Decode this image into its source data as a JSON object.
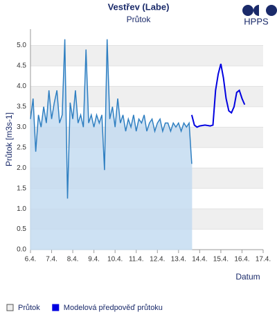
{
  "logo": "HPPS",
  "chart_data": {
    "type": "line",
    "title": "Vestřev (Labe)",
    "subtitle": "Průtok",
    "y_label": "Průtok [m3s-1]",
    "x_label": "Datum",
    "xlim": [
      6,
      17
    ],
    "ylim": [
      0,
      5.4
    ],
    "xticks": [
      {
        "value": 6,
        "label": "6.4."
      },
      {
        "value": 7,
        "label": "7.4."
      },
      {
        "value": 8,
        "label": "8.4."
      },
      {
        "value": 9,
        "label": "9.4."
      },
      {
        "value": 10,
        "label": "10.4."
      },
      {
        "value": 11,
        "label": "11.4."
      },
      {
        "value": 12,
        "label": "12.4."
      },
      {
        "value": 13,
        "label": "13.4."
      },
      {
        "value": 14,
        "label": "14.4."
      },
      {
        "value": 15,
        "label": "15.4."
      },
      {
        "value": 16,
        "label": "16.4."
      },
      {
        "value": 17,
        "label": "17.4."
      }
    ],
    "yticks": [
      {
        "value": 0,
        "label": "0.0"
      },
      {
        "value": 0.5,
        "label": "0.5"
      },
      {
        "value": 1,
        "label": "1.0"
      },
      {
        "value": 1.5,
        "label": "1.5"
      },
      {
        "value": 2,
        "label": "2.0"
      },
      {
        "value": 2.5,
        "label": "2.5"
      },
      {
        "value": 3,
        "label": "3.0"
      },
      {
        "value": 3.5,
        "label": "3.5"
      },
      {
        "value": 4,
        "label": "4.0"
      },
      {
        "value": 4.5,
        "label": "4.5"
      },
      {
        "value": 5,
        "label": "5.0"
      }
    ],
    "grid": true,
    "series": [
      {
        "name": "Průtok",
        "color": "#2f7fc1",
        "fill": "#c5dcf1",
        "area": true,
        "x": [
          6.0,
          6.125,
          6.25,
          6.375,
          6.5,
          6.625,
          6.75,
          6.875,
          7.0,
          7.125,
          7.25,
          7.375,
          7.5,
          7.625,
          7.75,
          7.875,
          8.0,
          8.125,
          8.25,
          8.375,
          8.5,
          8.625,
          8.75,
          8.875,
          9.0,
          9.125,
          9.25,
          9.375,
          9.5,
          9.625,
          9.75,
          9.875,
          10.0,
          10.125,
          10.25,
          10.375,
          10.5,
          10.625,
          10.75,
          10.875,
          11.0,
          11.125,
          11.25,
          11.375,
          11.5,
          11.625,
          11.75,
          11.875,
          12.0,
          12.125,
          12.25,
          12.375,
          12.5,
          12.625,
          12.75,
          12.875,
          13.0,
          13.125,
          13.25,
          13.375,
          13.5,
          13.625
        ],
        "values": [
          3.2,
          3.7,
          2.4,
          3.3,
          3.0,
          3.5,
          3.1,
          3.9,
          3.2,
          3.6,
          3.9,
          3.1,
          3.3,
          5.15,
          1.25,
          3.6,
          3.2,
          3.9,
          3.1,
          3.3,
          3.0,
          4.9,
          3.1,
          3.3,
          3.0,
          3.3,
          3.1,
          3.3,
          1.95,
          5.15,
          3.2,
          3.5,
          3.0,
          3.7,
          3.1,
          3.3,
          2.9,
          3.2,
          3.0,
          3.3,
          2.9,
          3.2,
          3.1,
          3.3,
          2.9,
          3.1,
          3.2,
          2.9,
          3.1,
          3.2,
          2.9,
          3.1,
          3.1,
          2.9,
          3.1,
          3.0,
          3.1,
          2.9,
          3.1,
          3.0,
          3.1,
          2.1
        ]
      },
      {
        "name": "Modelová předpověď průtoku",
        "color": "#0000e0",
        "x": [
          13.625,
          13.75,
          13.875,
          14.0,
          14.25,
          14.5,
          14.625,
          14.75,
          14.875,
          15.0,
          15.125,
          15.25,
          15.375,
          15.5,
          15.625,
          15.75,
          15.875,
          16.0,
          16.125
        ],
        "values": [
          3.3,
          3.05,
          3.0,
          3.03,
          3.05,
          3.03,
          3.05,
          3.9,
          4.3,
          4.55,
          4.2,
          3.7,
          3.4,
          3.35,
          3.5,
          3.85,
          3.9,
          3.7,
          3.55
        ]
      }
    ]
  }
}
